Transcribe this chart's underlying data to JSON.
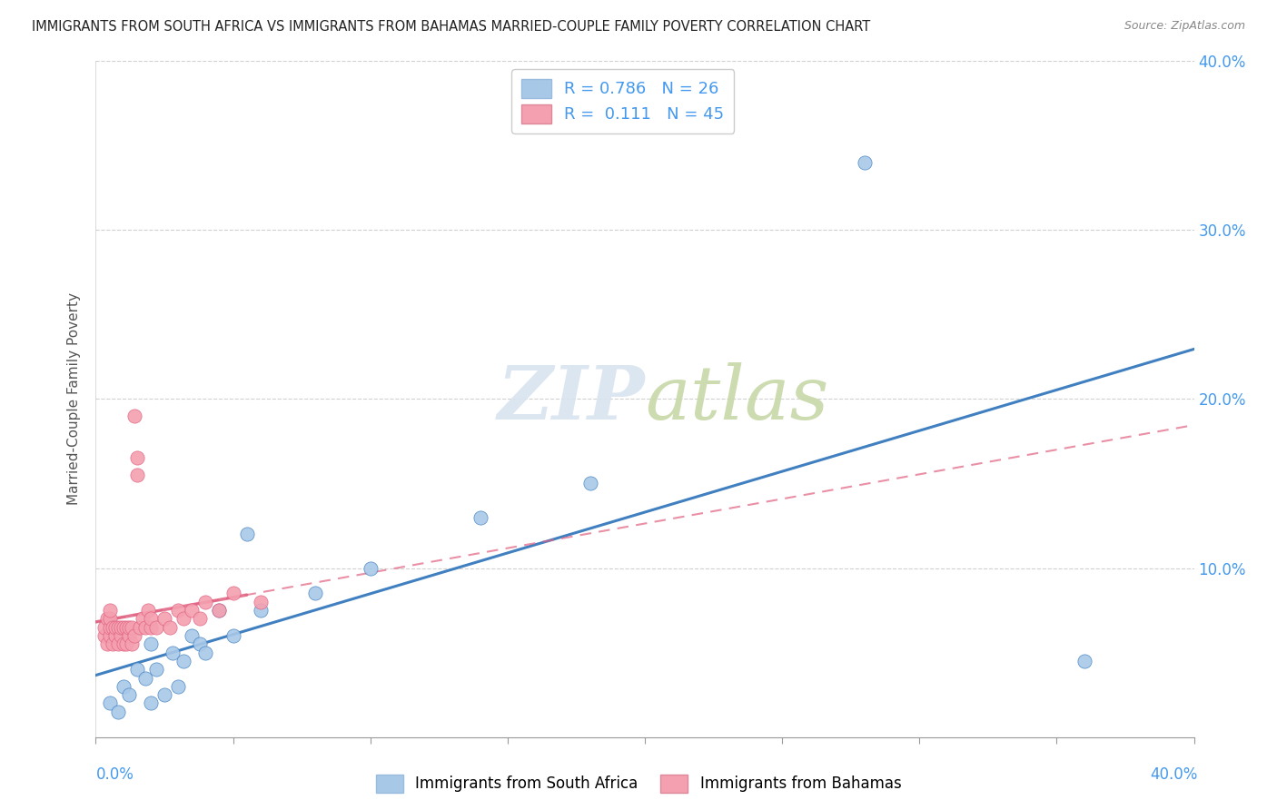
{
  "title": "IMMIGRANTS FROM SOUTH AFRICA VS IMMIGRANTS FROM BAHAMAS MARRIED-COUPLE FAMILY POVERTY CORRELATION CHART",
  "source": "Source: ZipAtlas.com",
  "ylabel": "Married-Couple Family Poverty",
  "xlim": [
    0,
    0.4
  ],
  "ylim": [
    0,
    0.4
  ],
  "legend_r1": "R = 0.786",
  "legend_n1": "N = 26",
  "legend_r2": "R =  0.111",
  "legend_n2": "N = 45",
  "south_africa_color": "#a8c8e8",
  "bahamas_color": "#f4a0b0",
  "south_africa_line_color": "#4080c0",
  "bahamas_line_color": "#e06080",
  "bahamas_line_dash_color": "#e08098",
  "watermark_color": "#d8e4f0",
  "south_africa_x": [
    0.005,
    0.008,
    0.01,
    0.012,
    0.015,
    0.018,
    0.02,
    0.02,
    0.022,
    0.025,
    0.028,
    0.03,
    0.032,
    0.035,
    0.038,
    0.04,
    0.045,
    0.05,
    0.055,
    0.06,
    0.08,
    0.1,
    0.14,
    0.18,
    0.28,
    0.36
  ],
  "south_africa_y": [
    0.02,
    0.015,
    0.03,
    0.025,
    0.04,
    0.035,
    0.02,
    0.055,
    0.04,
    0.025,
    0.05,
    0.03,
    0.045,
    0.06,
    0.055,
    0.05,
    0.075,
    0.06,
    0.12,
    0.075,
    0.085,
    0.1,
    0.13,
    0.15,
    0.34,
    0.045
  ],
  "bahamas_x": [
    0.003,
    0.003,
    0.004,
    0.004,
    0.005,
    0.005,
    0.005,
    0.005,
    0.006,
    0.006,
    0.007,
    0.007,
    0.008,
    0.008,
    0.009,
    0.009,
    0.01,
    0.01,
    0.011,
    0.011,
    0.012,
    0.012,
    0.013,
    0.013,
    0.014,
    0.014,
    0.015,
    0.015,
    0.016,
    0.017,
    0.018,
    0.019,
    0.02,
    0.02,
    0.022,
    0.025,
    0.027,
    0.03,
    0.032,
    0.035,
    0.038,
    0.04,
    0.045,
    0.05,
    0.06
  ],
  "bahamas_y": [
    0.06,
    0.065,
    0.055,
    0.07,
    0.06,
    0.065,
    0.07,
    0.075,
    0.055,
    0.065,
    0.06,
    0.065,
    0.055,
    0.065,
    0.06,
    0.065,
    0.055,
    0.065,
    0.055,
    0.065,
    0.06,
    0.065,
    0.055,
    0.065,
    0.19,
    0.06,
    0.155,
    0.165,
    0.065,
    0.07,
    0.065,
    0.075,
    0.065,
    0.07,
    0.065,
    0.07,
    0.065,
    0.075,
    0.07,
    0.075,
    0.07,
    0.08,
    0.075,
    0.085,
    0.08
  ],
  "background_color": "#ffffff",
  "grid_color": "#d0d0d0"
}
